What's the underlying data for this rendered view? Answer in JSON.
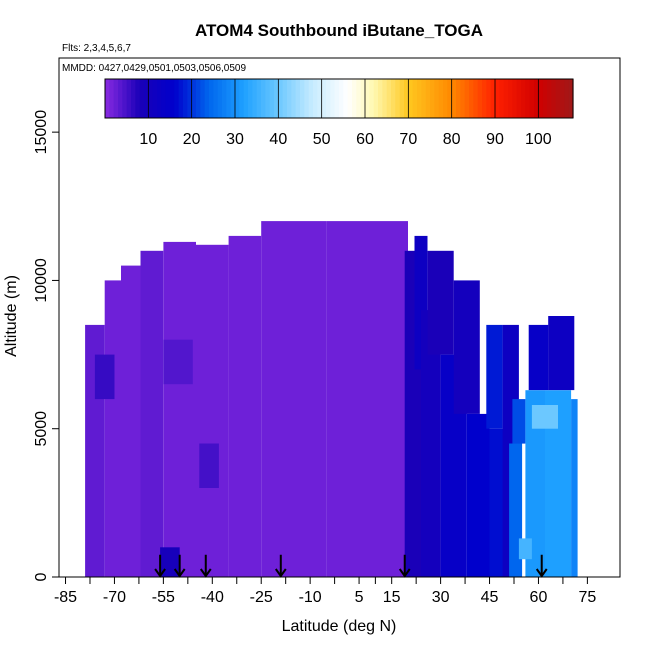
{
  "chart_data": {
    "type": "heatmap",
    "title": "ATOM4 Southbound iButane_TOGA",
    "flights_label": "Flts: 2,3,4,5,6,7",
    "dates_label": "MMDD: 0427,0429,0501,0503,0506,0509",
    "xlabel": "Latitude (deg N)",
    "ylabel": "Altitude (m)",
    "xlim": [
      -87,
      85
    ],
    "ylim": [
      0,
      17500
    ],
    "x_ticks": [
      -85,
      -70,
      -55,
      -40,
      -25,
      -10,
      5,
      15,
      30,
      45,
      60,
      75
    ],
    "x_tick_labels": [
      "-85",
      "-70",
      "-55",
      "-40",
      "-25",
      "-10",
      "5",
      "15",
      "30",
      "45",
      "60",
      "75"
    ],
    "y_ticks": [
      0,
      5000,
      10000,
      15000
    ],
    "y_tick_labels": [
      "0",
      "5000",
      "10000",
      "15000"
    ],
    "colorbar": {
      "tick_values": [
        10,
        20,
        30,
        40,
        50,
        60,
        70,
        80,
        90,
        100
      ],
      "tick_labels": [
        "10",
        "20",
        "30",
        "40",
        "50",
        "60",
        "70",
        "80",
        "90",
        "100"
      ],
      "range": [
        0,
        108
      ],
      "stops": [
        {
          "v": 0,
          "color": "#8a2be2"
        },
        {
          "v": 8,
          "color": "#1a00b8"
        },
        {
          "v": 16,
          "color": "#0000cc"
        },
        {
          "v": 24,
          "color": "#0066ee"
        },
        {
          "v": 32,
          "color": "#1ea0ff"
        },
        {
          "v": 40,
          "color": "#6cc8ff"
        },
        {
          "v": 48,
          "color": "#c8ecff"
        },
        {
          "v": 56,
          "color": "#ffffff"
        },
        {
          "v": 62,
          "color": "#fff8b0"
        },
        {
          "v": 70,
          "color": "#ffc820"
        },
        {
          "v": 80,
          "color": "#ff8800"
        },
        {
          "v": 90,
          "color": "#ff2000"
        },
        {
          "v": 100,
          "color": "#d00000"
        },
        {
          "v": 108,
          "color": "#a01818"
        }
      ]
    },
    "background_value": 2,
    "latitude_arrows": [
      -56,
      -50,
      -42,
      -19,
      19,
      61
    ],
    "regions": [
      {
        "lat": [
          -79,
          -73
        ],
        "alt": [
          0,
          8500
        ],
        "value": 3
      },
      {
        "lat": [
          -73,
          -68
        ],
        "alt": [
          0,
          10000
        ],
        "value": 2
      },
      {
        "lat": [
          -68,
          -62
        ],
        "alt": [
          0,
          10500
        ],
        "value": 2
      },
      {
        "lat": [
          -62,
          -55
        ],
        "alt": [
          0,
          11000
        ],
        "value": 3
      },
      {
        "lat": [
          -55,
          -45
        ],
        "alt": [
          0,
          11300
        ],
        "value": 2
      },
      {
        "lat": [
          -45,
          -35
        ],
        "alt": [
          0,
          11200
        ],
        "value": 2
      },
      {
        "lat": [
          -35,
          -25
        ],
        "alt": [
          0,
          11500
        ],
        "value": 2
      },
      {
        "lat": [
          -25,
          -5
        ],
        "alt": [
          0,
          12000
        ],
        "value": 2
      },
      {
        "lat": [
          -5,
          20
        ],
        "alt": [
          0,
          12000
        ],
        "value": 2
      },
      {
        "lat": [
          -56,
          -50
        ],
        "alt": [
          0,
          1000
        ],
        "value": 9
      },
      {
        "lat": [
          -76,
          -70
        ],
        "alt": [
          6000,
          7500
        ],
        "value": 6
      },
      {
        "lat": [
          -44,
          -38
        ],
        "alt": [
          3000,
          4500
        ],
        "value": 5
      },
      {
        "lat": [
          -55,
          -46
        ],
        "alt": [
          6500,
          8000
        ],
        "value": 4
      },
      {
        "lat": [
          19,
          24
        ],
        "alt": [
          0,
          11000
        ],
        "value": 8
      },
      {
        "lat": [
          22,
          26
        ],
        "alt": [
          7000,
          11500
        ],
        "value": 12
      },
      {
        "lat": [
          24,
          30
        ],
        "alt": [
          0,
          9000
        ],
        "value": 10
      },
      {
        "lat": [
          26,
          34
        ],
        "alt": [
          7500,
          11000
        ],
        "value": 8
      },
      {
        "lat": [
          30,
          38
        ],
        "alt": [
          0,
          7500
        ],
        "value": 14
      },
      {
        "lat": [
          34,
          42
        ],
        "alt": [
          5500,
          10000
        ],
        "value": 10
      },
      {
        "lat": [
          38,
          45
        ],
        "alt": [
          0,
          5500
        ],
        "value": 16
      },
      {
        "lat": [
          44,
          49
        ],
        "alt": [
          5000,
          8500
        ],
        "value": 18
      },
      {
        "lat": [
          45,
          50
        ],
        "alt": [
          0,
          5000
        ],
        "value": 17
      },
      {
        "lat": [
          49,
          54
        ],
        "alt": [
          0,
          8500
        ],
        "value": 12
      },
      {
        "lat": [
          51,
          55
        ],
        "alt": [
          0,
          4500
        ],
        "value": 24
      },
      {
        "lat": [
          52,
          56
        ],
        "alt": [
          4500,
          6000
        ],
        "value": 22
      },
      {
        "lat": [
          56,
          62
        ],
        "alt": [
          0,
          6300
        ],
        "value": 31
      },
      {
        "lat": [
          62,
          70
        ],
        "alt": [
          0,
          6300
        ],
        "value": 32
      },
      {
        "lat": [
          57,
          63
        ],
        "alt": [
          6300,
          8500
        ],
        "value": 14
      },
      {
        "lat": [
          63,
          71
        ],
        "alt": [
          6300,
          8800
        ],
        "value": 12
      },
      {
        "lat": [
          58,
          66
        ],
        "alt": [
          5000,
          5800
        ],
        "value": 40
      },
      {
        "lat": [
          54,
          58
        ],
        "alt": [
          600,
          1300
        ],
        "value": 36
      },
      {
        "lat": [
          70,
          72
        ],
        "alt": [
          0,
          6000
        ],
        "value": 28
      }
    ]
  }
}
